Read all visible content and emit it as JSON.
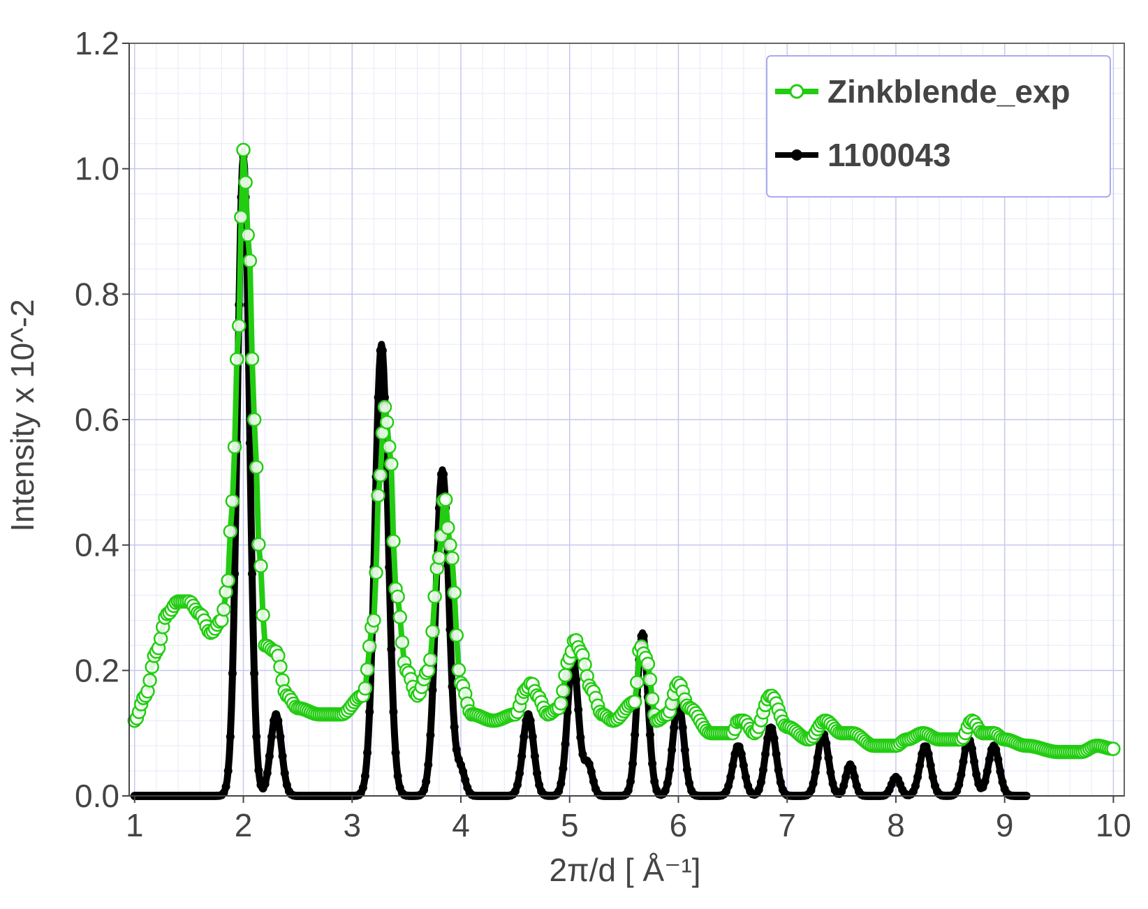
{
  "chart_data": {
    "type": "line",
    "title": "",
    "xlabel": "2π/d [ Å⁻¹]",
    "ylabel": "Intensity x 10^-2",
    "xlim": [
      0.95,
      10.1
    ],
    "ylim": [
      0,
      1.2
    ],
    "x_ticks": [
      1,
      2,
      3,
      4,
      5,
      6,
      7,
      8,
      9,
      10
    ],
    "x_tick_labels": [
      "1",
      "2",
      "3",
      "4",
      "5",
      "6",
      "7",
      "8",
      "9",
      "10"
    ],
    "y_ticks": [
      0,
      0.2,
      0.4,
      0.6,
      0.8,
      1.0,
      1.2
    ],
    "y_tick_labels": [
      "0.0",
      "0.2",
      "0.4",
      "0.6",
      "0.8",
      "1.0",
      "1.2"
    ],
    "grid": true,
    "legend_position": "top-right",
    "series": [
      {
        "name": "Zinkblende_exp",
        "color": "#22cc11",
        "marker": "open-circle",
        "x": [
          1.0,
          1.1,
          1.2,
          1.3,
          1.4,
          1.5,
          1.6,
          1.7,
          1.8,
          1.85,
          1.9,
          1.95,
          2.0,
          2.05,
          2.1,
          2.15,
          2.2,
          2.3,
          2.4,
          2.5,
          2.7,
          2.9,
          3.1,
          3.2,
          3.25,
          3.3,
          3.35,
          3.4,
          3.5,
          3.6,
          3.7,
          3.8,
          3.85,
          3.9,
          4.0,
          4.1,
          4.3,
          4.5,
          4.6,
          4.65,
          4.7,
          4.8,
          4.9,
          5.0,
          5.05,
          5.1,
          5.2,
          5.3,
          5.4,
          5.6,
          5.65,
          5.7,
          5.8,
          5.9,
          6.0,
          6.1,
          6.3,
          6.5,
          6.55,
          6.6,
          6.7,
          6.85,
          7.0,
          7.2,
          7.35,
          7.5,
          7.6,
          7.8,
          8.0,
          8.1,
          8.25,
          8.4,
          8.6,
          8.7,
          8.8,
          8.9,
          9.0,
          9.2,
          9.5,
          9.7,
          9.85,
          10.0
        ],
        "y": [
          0.12,
          0.16,
          0.23,
          0.29,
          0.31,
          0.31,
          0.29,
          0.26,
          0.28,
          0.33,
          0.47,
          0.72,
          1.03,
          0.88,
          0.6,
          0.38,
          0.24,
          0.23,
          0.16,
          0.14,
          0.13,
          0.13,
          0.16,
          0.28,
          0.5,
          0.62,
          0.55,
          0.33,
          0.2,
          0.16,
          0.2,
          0.38,
          0.48,
          0.4,
          0.18,
          0.13,
          0.12,
          0.13,
          0.17,
          0.18,
          0.16,
          0.13,
          0.14,
          0.22,
          0.25,
          0.23,
          0.17,
          0.13,
          0.12,
          0.15,
          0.24,
          0.22,
          0.12,
          0.13,
          0.18,
          0.14,
          0.1,
          0.1,
          0.12,
          0.12,
          0.1,
          0.16,
          0.11,
          0.09,
          0.12,
          0.1,
          0.1,
          0.08,
          0.08,
          0.09,
          0.1,
          0.09,
          0.09,
          0.12,
          0.1,
          0.1,
          0.09,
          0.08,
          0.07,
          0.07,
          0.08,
          0.075
        ]
      },
      {
        "name": "1100043",
        "color": "#000000",
        "marker": "filled-circle",
        "peaks": [
          {
            "x": 2.0,
            "y": 1.02,
            "w": 0.055
          },
          {
            "x": 2.3,
            "y": 0.13,
            "w": 0.05
          },
          {
            "x": 3.27,
            "y": 0.72,
            "w": 0.06
          },
          {
            "x": 3.83,
            "y": 0.52,
            "w": 0.06
          },
          {
            "x": 4.0,
            "y": 0.04,
            "w": 0.04
          },
          {
            "x": 4.62,
            "y": 0.13,
            "w": 0.05
          },
          {
            "x": 5.03,
            "y": 0.22,
            "w": 0.05
          },
          {
            "x": 5.17,
            "y": 0.05,
            "w": 0.04
          },
          {
            "x": 5.67,
            "y": 0.26,
            "w": 0.05
          },
          {
            "x": 6.0,
            "y": 0.15,
            "w": 0.05
          },
          {
            "x": 6.55,
            "y": 0.08,
            "w": 0.05
          },
          {
            "x": 6.85,
            "y": 0.11,
            "w": 0.05
          },
          {
            "x": 7.33,
            "y": 0.1,
            "w": 0.05
          },
          {
            "x": 7.58,
            "y": 0.05,
            "w": 0.04
          },
          {
            "x": 8.0,
            "y": 0.03,
            "w": 0.04
          },
          {
            "x": 8.27,
            "y": 0.08,
            "w": 0.05
          },
          {
            "x": 8.67,
            "y": 0.09,
            "w": 0.05
          },
          {
            "x": 8.9,
            "y": 0.08,
            "w": 0.05
          }
        ]
      }
    ]
  }
}
